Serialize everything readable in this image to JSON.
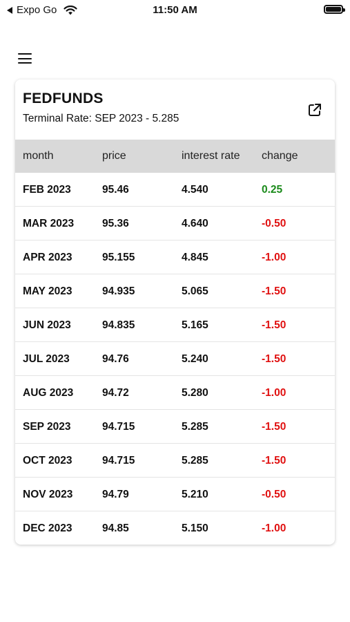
{
  "status_bar": {
    "carrier": "Expo Go",
    "time": "11:50 AM"
  },
  "card": {
    "title": "FEDFUNDS",
    "subtitle": "Terminal Rate: SEP 2023 - 5.285"
  },
  "table": {
    "headers": [
      "month",
      "price",
      "interest rate",
      "change"
    ],
    "rows": [
      {
        "month": "FEB 2023",
        "price": "95.46",
        "interest_rate": "4.540",
        "change": "0.25"
      },
      {
        "month": "MAR 2023",
        "price": "95.36",
        "interest_rate": "4.640",
        "change": "-0.50"
      },
      {
        "month": "APR 2023",
        "price": "95.155",
        "interest_rate": "4.845",
        "change": "-1.00"
      },
      {
        "month": "MAY 2023",
        "price": "94.935",
        "interest_rate": "5.065",
        "change": "-1.50"
      },
      {
        "month": "JUN 2023",
        "price": "94.835",
        "interest_rate": "5.165",
        "change": "-1.50"
      },
      {
        "month": "JUL 2023",
        "price": "94.76",
        "interest_rate": "5.240",
        "change": "-1.50"
      },
      {
        "month": "AUG 2023",
        "price": "94.72",
        "interest_rate": "5.280",
        "change": "-1.00"
      },
      {
        "month": "SEP 2023",
        "price": "94.715",
        "interest_rate": "5.285",
        "change": "-1.50"
      },
      {
        "month": "OCT 2023",
        "price": "94.715",
        "interest_rate": "5.285",
        "change": "-1.50"
      },
      {
        "month": "NOV 2023",
        "price": "94.79",
        "interest_rate": "5.210",
        "change": "-0.50"
      },
      {
        "month": "DEC 2023",
        "price": "94.85",
        "interest_rate": "5.150",
        "change": "-1.00"
      }
    ]
  },
  "colors": {
    "positive": "#1a8a1a",
    "negative": "#e01010",
    "header_bg": "#d9d9d9"
  },
  "icons": {
    "menu": "hamburger-menu-icon",
    "external": "external-link-icon",
    "wifi": "wifi-icon",
    "battery": "battery-icon"
  }
}
